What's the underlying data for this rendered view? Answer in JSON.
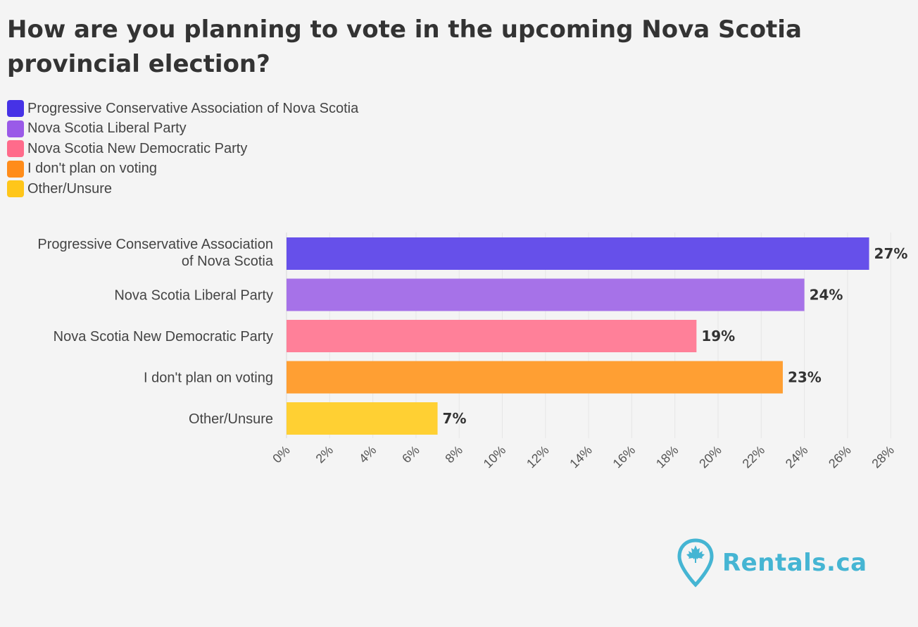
{
  "title": "How are you planning to vote in the upcoming Nova Scotia provincial election?",
  "legend": [
    {
      "label": "Progressive Conservative Association of Nova Scotia",
      "color": "#4632e6"
    },
    {
      "label": "Nova Scotia Liberal Party",
      "color": "#9a5ae8"
    },
    {
      "label": "Nova Scotia New Democratic Party",
      "color": "#ff6b8b"
    },
    {
      "label": "I don't plan on voting",
      "color": "#ff8c1a"
    },
    {
      "label": "Other/Unsure",
      "color": "#ffc61a"
    }
  ],
  "chart_data": {
    "type": "bar",
    "orientation": "horizontal",
    "title": "How are you planning to vote in the upcoming Nova Scotia provincial election?",
    "categories": [
      "Progressive Conservative Association of Nova Scotia",
      "Nova Scotia Liberal Party",
      "Nova Scotia New Democratic Party",
      "I don't plan on voting",
      "Other/Unsure"
    ],
    "values": [
      27,
      24,
      19,
      23,
      7
    ],
    "value_labels": [
      "27%",
      "24%",
      "19%",
      "23%",
      "7%"
    ],
    "colors": [
      "#6650ea",
      "#a672e8",
      "#ff8099",
      "#ff9f33",
      "#ffd033"
    ],
    "xlim": [
      0,
      28
    ],
    "xticks": [
      "0%",
      "2%",
      "4%",
      "6%",
      "8%",
      "10%",
      "12%",
      "14%",
      "16%",
      "18%",
      "20%",
      "22%",
      "24%",
      "26%",
      "28%"
    ],
    "xlabel": "",
    "ylabel": "",
    "grid": true,
    "legend_position": "top-left"
  },
  "logo": {
    "text": "Rentals.ca",
    "icon": "maple-leaf-pin-icon",
    "color": "#45b5d3"
  }
}
